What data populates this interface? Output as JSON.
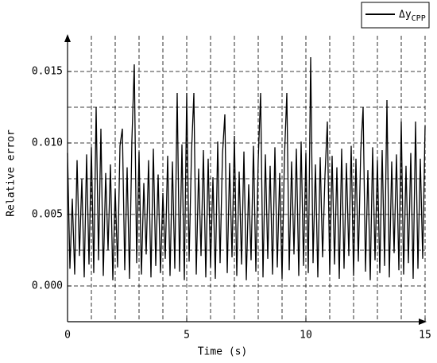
{
  "chart_data": {
    "type": "line",
    "xlabel": "Time (s)",
    "ylabel": "Relative error",
    "xlim": [
      0,
      15
    ],
    "xticks": [
      0,
      5,
      10,
      15
    ],
    "xminorticks": [
      1,
      2,
      3,
      4,
      6,
      7,
      8,
      9,
      11,
      12,
      13,
      14
    ],
    "ylim": [
      -0.0025,
      0.0175
    ],
    "yticks": [
      {
        "value": 0,
        "label": "0.000"
      },
      {
        "value": 0.005,
        "label": "0.005"
      },
      {
        "value": 0.01,
        "label": "0.010"
      },
      {
        "value": 0.015,
        "label": "0.015"
      }
    ],
    "yminorticks": [
      0.0025,
      0.0075,
      0.0125
    ],
    "grid": true,
    "legend": "upper right",
    "x": [
      0,
      0.1,
      0.2,
      0.3,
      0.4,
      0.5,
      0.6,
      0.7,
      0.8,
      0.9,
      1,
      1.1,
      1.2,
      1.3,
      1.4,
      1.5,
      1.6,
      1.7,
      1.8,
      1.9,
      2,
      2.1,
      2.2,
      2.3,
      2.4,
      2.5,
      2.6,
      2.7,
      2.8,
      2.9,
      3,
      3.1,
      3.2,
      3.3,
      3.4,
      3.5,
      3.6,
      3.7,
      3.8,
      3.9,
      4,
      4.1,
      4.2,
      4.3,
      4.4,
      4.5,
      4.6,
      4.7,
      4.8,
      4.9,
      5,
      5.1,
      5.2,
      5.3,
      5.4,
      5.5,
      5.6,
      5.7,
      5.8,
      5.9,
      6,
      6.1,
      6.2,
      6.3,
      6.4,
      6.5,
      6.6,
      6.7,
      6.8,
      6.9,
      7,
      7.1,
      7.2,
      7.3,
      7.4,
      7.5,
      7.6,
      7.7,
      7.8,
      7.9,
      8,
      8.1,
      8.2,
      8.3,
      8.4,
      8.5,
      8.6,
      8.7,
      8.8,
      8.9,
      9,
      9.1,
      9.2,
      9.3,
      9.4,
      9.5,
      9.6,
      9.7,
      9.8,
      9.9,
      10,
      10.1,
      10.2,
      10.3,
      10.4,
      10.5,
      10.6,
      10.7,
      10.8,
      10.9,
      11,
      11.1,
      11.2,
      11.3,
      11.4,
      11.5,
      11.6,
      11.7,
      11.8,
      11.9,
      12,
      12.1,
      12.2,
      12.3,
      12.4,
      12.5,
      12.6,
      12.7,
      12.8,
      12.9,
      13,
      13.1,
      13.2,
      13.3,
      13.4,
      13.5,
      13.6,
      13.7,
      13.8,
      13.9,
      14,
      14.1,
      14.2,
      14.3,
      14.4,
      14.5,
      14.6,
      14.7,
      14.8,
      14.9,
      15
    ],
    "series": [
      {
        "name": "Δy",
        "subscript": "CPP",
        "color": "#000000",
        "values": [
          0.0093,
          0.0012,
          0.0061,
          0.0008,
          0.0088,
          0.0021,
          0.0075,
          0.0006,
          0.0092,
          0.0015,
          0.0097,
          0.0009,
          0.0125,
          0.0018,
          0.011,
          0.0007,
          0.0079,
          0.0025,
          0.0085,
          0.0004,
          0.0068,
          0.0013,
          0.0098,
          0.011,
          0.0011,
          0.0083,
          0.0005,
          0.0102,
          0.0155,
          0.0016,
          0.0094,
          0.0008,
          0.0072,
          0.0022,
          0.0088,
          0.0006,
          0.0096,
          0.0014,
          0.0078,
          0.0009,
          0.0065,
          0.0019,
          0.0091,
          0.0007,
          0.0087,
          0.0012,
          0.0135,
          0.001,
          0.0099,
          0.0004,
          0.0135,
          0.0017,
          0.0093,
          0.0135,
          0.0008,
          0.0082,
          0.0021,
          0.0095,
          0.0006,
          0.0089,
          0.0013,
          0.0076,
          0.0005,
          0.0101,
          0.0016,
          0.0092,
          0.012,
          0.0009,
          0.0086,
          0.002,
          0.0105,
          0.0007,
          0.008,
          0.0015,
          0.0094,
          0.0004,
          0.0071,
          0.0018,
          0.0098,
          0.001,
          0.0088,
          0.0135,
          0.0006,
          0.0092,
          0.0019,
          0.0084,
          0.0008,
          0.0097,
          0.0013,
          0.0079,
          0.0005,
          0.009,
          0.0135,
          0.0011,
          0.0087,
          0.0022,
          0.0096,
          0.0007,
          0.0101,
          0.0014,
          0.0093,
          0.0009,
          0.016,
          0.0016,
          0.0085,
          0.0006,
          0.009,
          0.002,
          0.0077,
          0.0115,
          0.0008,
          0.0091,
          0.0015,
          0.0083,
          0.0005,
          0.0096,
          0.0012,
          0.0086,
          0.0021,
          0.0098,
          0.0007,
          0.0089,
          0.0017,
          0.0094,
          0.0125,
          0.001,
          0.0081,
          0.0004,
          0.0097,
          0.0018,
          0.0088,
          0.0009,
          0.0095,
          0.0014,
          0.013,
          0.0006,
          0.0087,
          0.0023,
          0.0092,
          0.0011,
          0.0115,
          0.0008,
          0.0084,
          0.0016,
          0.0093,
          0.0005,
          0.0115,
          0.0012,
          0.0089,
          0.0019,
          0.0112
        ]
      }
    ]
  }
}
